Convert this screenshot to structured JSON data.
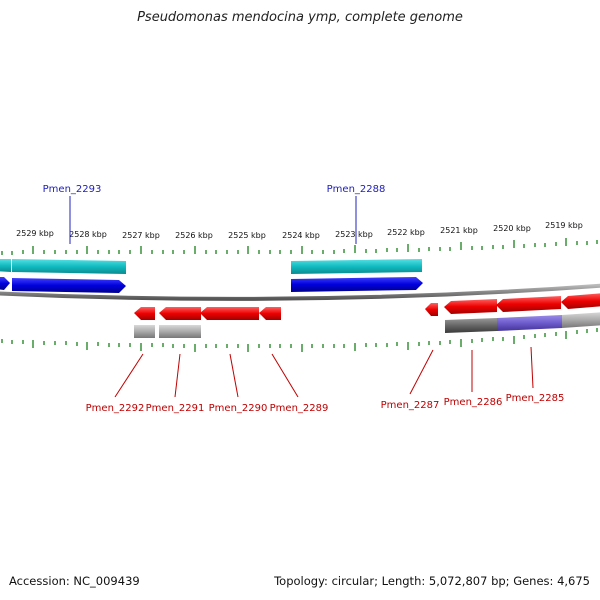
{
  "header": {
    "title": "Pseudomonas mendocina ymp, complete genome"
  },
  "footer": {
    "accession": "Accession: NC_009439",
    "topology": "Topology: circular; Length: 5,072,807 bp; Genes: 4,675"
  },
  "scale": {
    "ticks": [
      "2529 kbp",
      "2528 kbp",
      "2527 kbp",
      "2526 kbp",
      "2525 kbp",
      "2524 kbp",
      "2523 kbp",
      "2522 kbp",
      "2521 kbp",
      "2520 kbp",
      "2519 kbp"
    ]
  },
  "genes_forward": [
    {
      "label": "Pmen_2293",
      "color": "#2020c0"
    },
    {
      "label": "Pmen_2288",
      "color": "#2020c0"
    }
  ],
  "genes_reverse": [
    {
      "label": "Pmen_2292",
      "color": "#c00000"
    },
    {
      "label": "Pmen_2291",
      "color": "#c00000"
    },
    {
      "label": "Pmen_2290",
      "color": "#c00000"
    },
    {
      "label": "Pmen_2289",
      "color": "#c00000"
    },
    {
      "label": "Pmen_2287",
      "color": "#c00000"
    },
    {
      "label": "Pmen_2286",
      "color": "#c00000"
    },
    {
      "label": "Pmen_2285",
      "color": "#c00000"
    }
  ],
  "colors": {
    "forward_cds": "#0000dd",
    "forward_gene": "#11bbc0",
    "reverse_cds": "#ee0000",
    "reverse_gene_grey": "#aaaaaa",
    "reverse_gene_dark": "#666666",
    "reverse_gene_purple": "#6e5ccc",
    "tick": "#2a8a2a",
    "backbone": "#888888"
  }
}
